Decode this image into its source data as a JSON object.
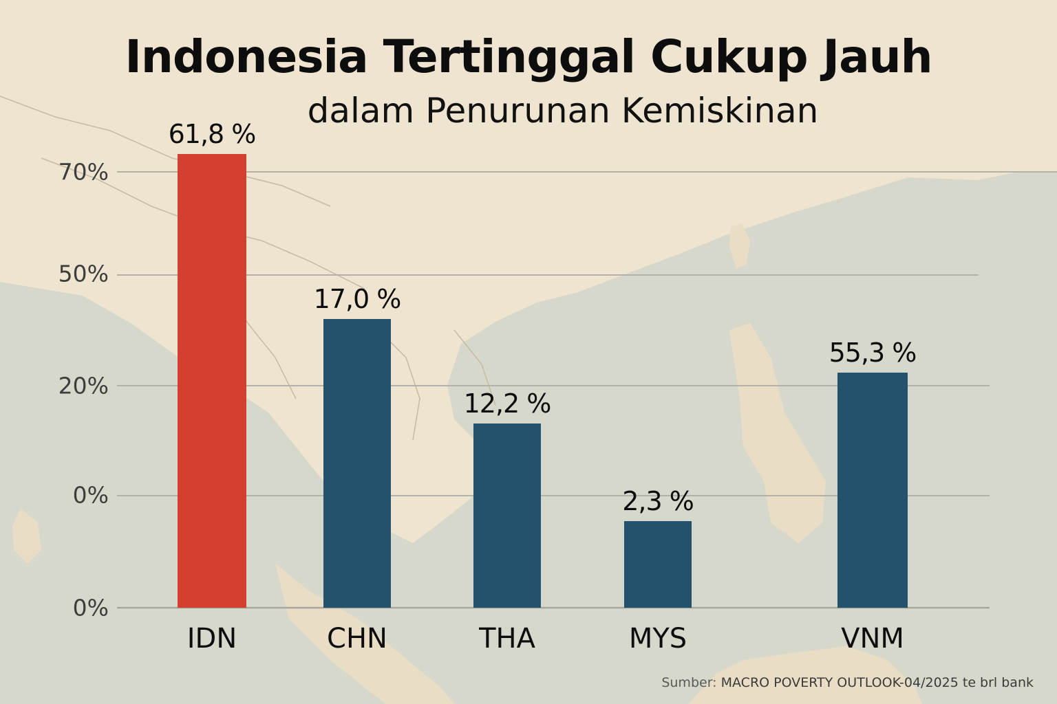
{
  "title": "Indonesia Tertinggal Cukup Jauh",
  "subtitle": "dalam Penurunan Kemiskinan",
  "source_prefix": "Sumber:",
  "source": "MACRO POVERTY OUTLOOK-04/2025 te brl bank",
  "colors": {
    "highlight": "#d44030",
    "bar": "#24516c",
    "grid": "#b4b2a8",
    "land": "#efe4d0",
    "sea": "#d6d8cc"
  },
  "chart_data": {
    "type": "bar",
    "title": "Indonesia Tertinggal Cukup Jauh",
    "subtitle": "dalam Penurunan Kemiskinan",
    "categories": [
      "IDN",
      "CHN",
      "THA",
      "MYS",
      "VNM"
    ],
    "values": [
      61.8,
      17.0,
      12.2,
      2.3,
      55.3
    ],
    "data_labels": [
      "61,8 %",
      "17,0 %",
      "12,2 %",
      "2,3 %",
      "55,3 %"
    ],
    "highlight": "IDN",
    "y_ticks": [
      "70%",
      "50%",
      "20%",
      "0%",
      "0%"
    ],
    "grid": true,
    "legend": "none"
  }
}
